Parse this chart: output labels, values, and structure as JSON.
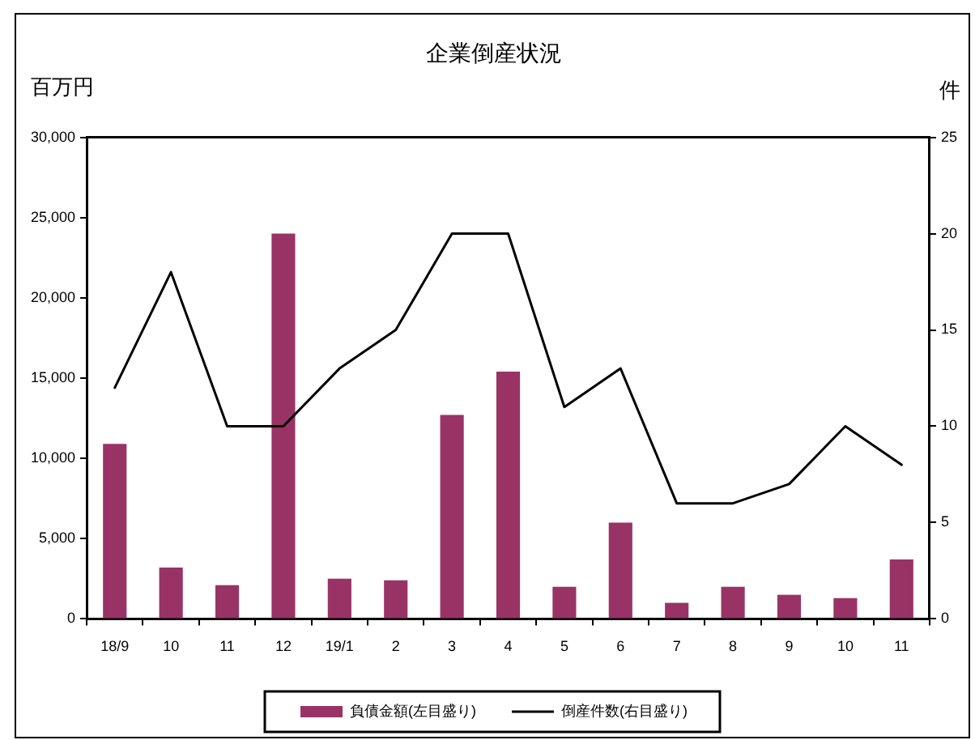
{
  "chart_data": {
    "type": "bar",
    "title": "企業倒産状況",
    "ylabel": "百万円",
    "y2label": "件",
    "categories": [
      "18/9",
      "10",
      "11",
      "12",
      "19/1",
      "2",
      "3",
      "4",
      "5",
      "6",
      "7",
      "8",
      "9",
      "10",
      "11"
    ],
    "series": [
      {
        "name": "負債金額(左目盛り)",
        "color": "#993366",
        "values": [
          10900,
          3200,
          2100,
          24000,
          2500,
          2400,
          12700,
          15400,
          2000,
          6000,
          1000,
          2000,
          1500,
          1300,
          3700
        ]
      },
      {
        "name": "倒産件数(右目盛り)",
        "type": "line",
        "axis": "y2",
        "color": "#000000",
        "values": [
          12,
          18,
          10,
          10,
          13,
          15,
          20,
          20,
          11,
          13,
          6,
          6,
          7,
          10,
          8
        ]
      }
    ],
    "ylim": [
      0,
      30000
    ],
    "yticks": [
      0,
      {
        "value": 5000,
        "label": "5,000"
      },
      {
        "value": 10000,
        "label": "10,000"
      },
      {
        "value": 15000,
        "label": "15,000"
      },
      {
        "value": 20000,
        "label": "20,000"
      },
      {
        "value": 25000,
        "label": "25,000"
      },
      {
        "value": 30000,
        "label": "30,000"
      }
    ],
    "y2lim": [
      0,
      25
    ],
    "y2ticks": [
      0,
      5,
      10,
      15,
      20,
      25
    ],
    "legend": "bottom",
    "grid": false,
    "marker": "none",
    "line_style": "solid"
  }
}
